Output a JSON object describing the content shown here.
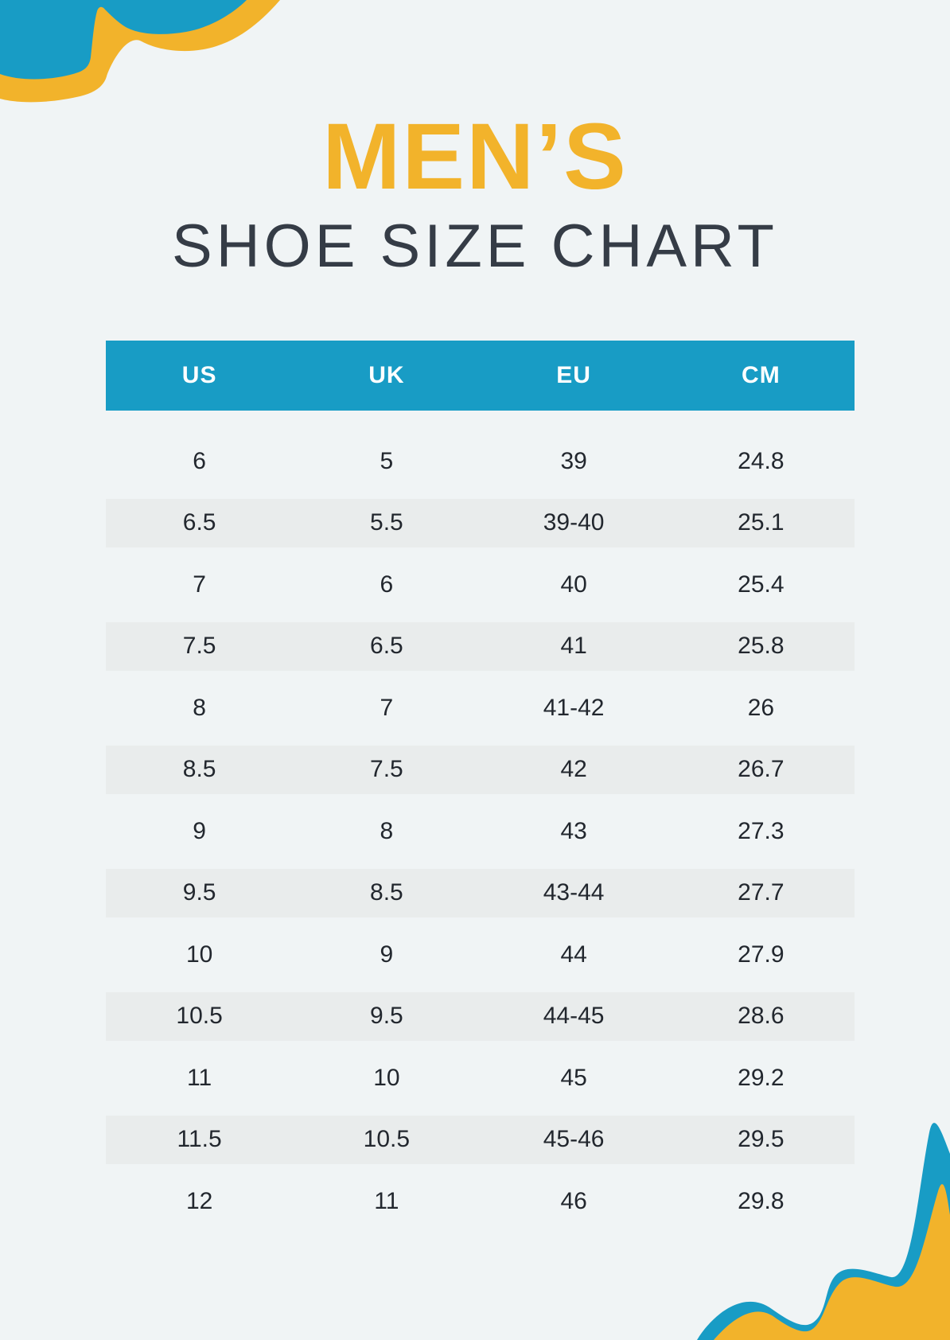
{
  "header": {
    "title": "MEN’S",
    "subtitle": "SHOE SIZE CHART"
  },
  "colors": {
    "blue": "#189CC5",
    "yellow": "#F2B32B",
    "background": "#F0F4F5",
    "stripe": "#E9ECEC",
    "subtitle": "#353C46",
    "cell": "#22272E",
    "header-text": "#FFFFFF"
  },
  "chart_data": {
    "type": "table",
    "title": "MEN'S SHOE SIZE CHART",
    "columns": [
      "US",
      "UK",
      "EU",
      "CM"
    ],
    "rows": [
      [
        "6",
        "5",
        "39",
        "24.8"
      ],
      [
        "6.5",
        "5.5",
        "39-40",
        "25.1"
      ],
      [
        "7",
        "6",
        "40",
        "25.4"
      ],
      [
        "7.5",
        "6.5",
        "41",
        "25.8"
      ],
      [
        "8",
        "7",
        "41-42",
        "26"
      ],
      [
        "8.5",
        "7.5",
        "42",
        "26.7"
      ],
      [
        "9",
        "8",
        "43",
        "27.3"
      ],
      [
        "9.5",
        "8.5",
        "43-44",
        "27.7"
      ],
      [
        "10",
        "9",
        "44",
        "27.9"
      ],
      [
        "10.5",
        "9.5",
        "44-45",
        "28.6"
      ],
      [
        "11",
        "10",
        "45",
        "29.2"
      ],
      [
        "11.5",
        "10.5",
        "45-46",
        "29.5"
      ],
      [
        "12",
        "11",
        "46",
        "29.8"
      ]
    ],
    "layout": {
      "striping": "every second row shaded",
      "column_alignment": "center",
      "header_background": "#189CC5"
    }
  }
}
